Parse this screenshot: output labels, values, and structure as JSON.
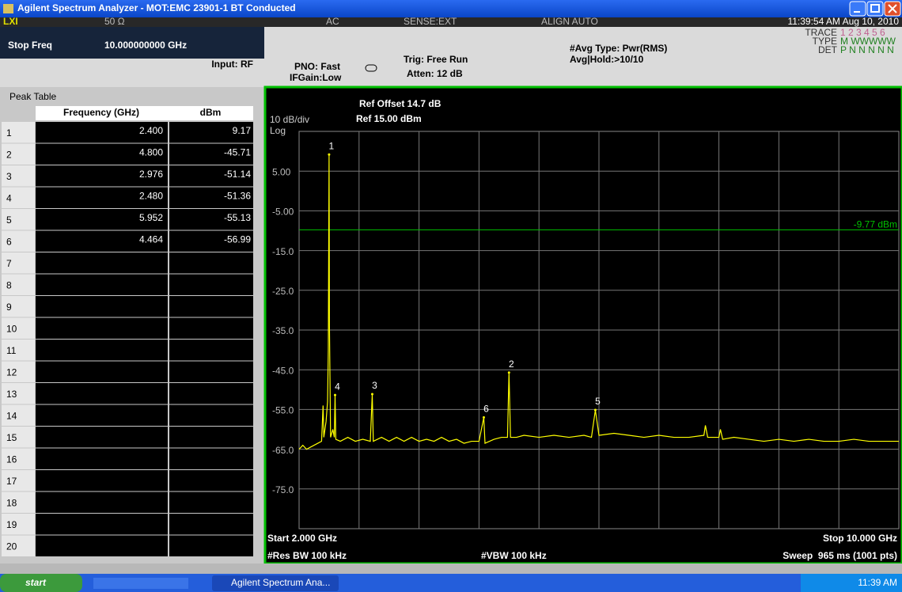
{
  "window": {
    "title": "Agilent Spectrum Analyzer - MOT:EMC 23901-1 BT Conducted"
  },
  "header": {
    "lxi": "LXI",
    "impedance": "50 Ω",
    "coupling": "AC",
    "sense": "SENSE:EXT",
    "align": "ALIGN AUTO",
    "time": "11:39:54 AM Aug 10, 2010",
    "active_label": "Stop Freq",
    "active_value": "10.000000000 GHz",
    "input": "Input: RF",
    "pno": "PNO: Fast",
    "ifgain": "IFGain:Low",
    "trig": "Trig: Free Run",
    "atten": "Atten: 12 dB",
    "avg_type": "#Avg Type: Pwr(RMS)",
    "avg_hold": "Avg|Hold:>10/10",
    "trace_label": "TRACE",
    "trace_value": "1 2 3 4 5 6",
    "type_label": "TYPE",
    "type_value": "M WWWWW",
    "det_label": "DET",
    "det_value": "P N N N N N"
  },
  "peak_table": {
    "title": "Peak Table",
    "columns": [
      "Frequency (GHz)",
      "dBm"
    ],
    "index": [
      "1",
      "2",
      "3",
      "4",
      "5",
      "6",
      "7",
      "8",
      "9",
      "10",
      "11",
      "12",
      "13",
      "14",
      "15",
      "16",
      "17",
      "18",
      "19",
      "20"
    ],
    "rows": [
      [
        "2.400",
        "9.17"
      ],
      [
        "4.800",
        "-45.71"
      ],
      [
        "2.976",
        "-51.14"
      ],
      [
        "2.480",
        "-51.36"
      ],
      [
        "5.952",
        "-55.13"
      ],
      [
        "4.464",
        "-56.99"
      ]
    ]
  },
  "chart_data": {
    "type": "line",
    "scale": "10 dB/div",
    "scale_type": "Log",
    "ref_offset": "Ref Offset 14.7 dB",
    "ref_level": "Ref 15.00 dBm",
    "ylim": [
      -85,
      15
    ],
    "yticks": [
      {
        "value": 5,
        "label": "5.00"
      },
      {
        "value": -5,
        "label": "-5.00"
      },
      {
        "value": -15,
        "label": "-15.0"
      },
      {
        "value": -25,
        "label": "-25.0"
      },
      {
        "value": -35,
        "label": "-35.0"
      },
      {
        "value": -45,
        "label": "-45.0"
      },
      {
        "value": -55,
        "label": "-55.0"
      },
      {
        "value": -65,
        "label": "-65.0"
      },
      {
        "value": -75,
        "label": "-75.0"
      }
    ],
    "xlim": [
      2,
      10
    ],
    "xticks": [
      2.8,
      3.6,
      4.4,
      5.2,
      6,
      6.8,
      7.6,
      8.4,
      9.2
    ],
    "grid": true,
    "color": "#ffff00",
    "display_line": {
      "value": -9.77,
      "label": "-9.77 dBm",
      "color": "#00c000"
    },
    "markers": [
      {
        "label": "1",
        "x": 2.4,
        "value": 9.17
      },
      {
        "label": "2",
        "x": 4.8,
        "value": -45.71
      },
      {
        "label": "3",
        "x": 2.976,
        "value": -51.14
      },
      {
        "label": "4",
        "x": 2.48,
        "value": -51.36
      },
      {
        "label": "5",
        "x": 5.952,
        "value": -55.13
      },
      {
        "label": "6",
        "x": 4.464,
        "value": -56.99
      }
    ],
    "x": [
      2.0,
      2.05,
      2.1,
      2.15,
      2.2,
      2.25,
      2.3,
      2.32,
      2.33,
      2.36,
      2.38,
      2.39,
      2.4,
      2.405,
      2.42,
      2.45,
      2.47,
      2.48,
      2.49,
      2.55,
      2.65,
      2.75,
      2.85,
      2.95,
      2.976,
      2.99,
      3.1,
      3.2,
      3.3,
      3.4,
      3.5,
      3.6,
      3.7,
      3.8,
      3.9,
      4.0,
      4.1,
      4.2,
      4.3,
      4.4,
      4.464,
      4.48,
      4.6,
      4.7,
      4.78,
      4.8,
      4.82,
      4.9,
      5.0,
      5.2,
      5.4,
      5.6,
      5.8,
      5.9,
      5.952,
      6.0,
      6.2,
      6.4,
      6.6,
      6.8,
      7.0,
      7.2,
      7.4,
      7.42,
      7.45,
      7.6,
      7.62,
      7.65,
      7.8,
      8.0,
      8.2,
      8.4,
      8.6,
      8.8,
      9.0,
      9.2,
      9.4,
      9.6,
      9.8,
      10.0
    ],
    "values": [
      -65,
      -64,
      -65,
      -64.5,
      -64,
      -63.5,
      -63,
      -54,
      -62,
      -58,
      -53,
      -40,
      9.17,
      -34,
      -62,
      -60,
      -62,
      -51.36,
      -62.5,
      -63,
      -62,
      -63,
      -62.5,
      -63,
      -51.14,
      -63,
      -62,
      -63,
      -62,
      -63,
      -62,
      -63,
      -62.5,
      -63,
      -62,
      -63,
      -62.5,
      -63.5,
      -63,
      -63,
      -56.99,
      -63.5,
      -62.5,
      -62,
      -62,
      -45.71,
      -62,
      -62,
      -61.5,
      -62,
      -61.5,
      -62,
      -61.5,
      -62,
      -55.13,
      -61.5,
      -61,
      -61.5,
      -62,
      -61.5,
      -62,
      -62,
      -61.5,
      -59,
      -62,
      -62,
      -60,
      -62.5,
      -62,
      -62.5,
      -63,
      -62.5,
      -63,
      -62.5,
      -63,
      -63,
      -62.5,
      -63,
      -63,
      -63
    ]
  },
  "footer": {
    "start": "Start 2.000 GHz",
    "stop": "Stop 10.000 GHz",
    "res_bw": "#Res BW 100 kHz",
    "vbw": "#VBW 100 kHz",
    "sweep": "Sweep  965 ms (1001 pts)"
  },
  "taskbar": {
    "start": "start",
    "task": "Agilent Spectrum Ana...",
    "clock": "11:39 AM"
  }
}
